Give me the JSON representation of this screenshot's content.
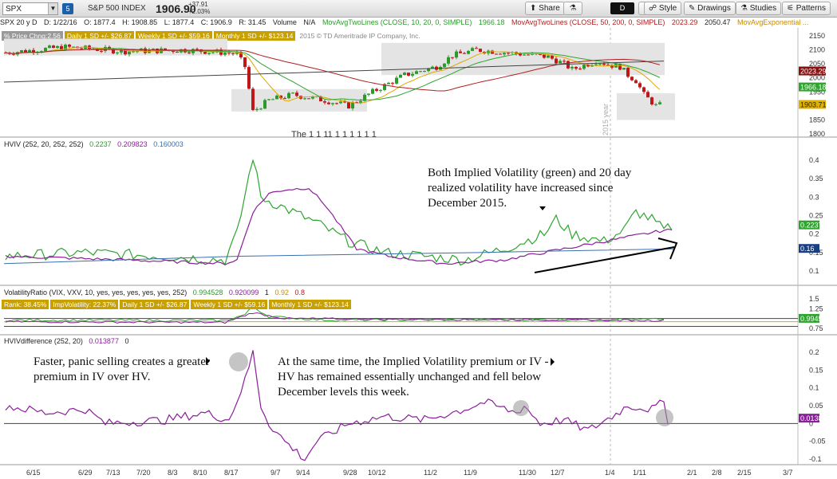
{
  "toolbar": {
    "symbol": "SPX",
    "badge": "5",
    "name": "S&P 500 INDEX",
    "price": "1906.90",
    "change_abs": "+37.91",
    "change_pct": "+2.03%",
    "share": "Share",
    "flask": "",
    "d_label": "D",
    "style": "Style",
    "drawings": "Drawings",
    "studies": "Studies",
    "patterns": "Patterns"
  },
  "info": {
    "period": "SPX 20 y D",
    "date": "D: 1/22/16",
    "open": "O: 1877.4",
    "high": "H: 1908.85",
    "low": "L: 1877.4",
    "close": "C: 1906.9",
    "range": "R: 31.45",
    "volume": "Volume",
    "na": "N/A",
    "ma1": "MovAvgTwoLines (CLOSE, 10, 20, 0, SIMPLE)",
    "ma1_val": "1966.18",
    "ma2": "MovAvgTwoLines (CLOSE, 50, 200, 0, SIMPLE)",
    "ma2_val": "2023.29",
    "ma2_val2": "2050.47",
    "ma3": "MovAvgExponential ..."
  },
  "tags": {
    "pct": "% Price Chng:2.56",
    "daily": "Daily 1 SD +/- $26.87",
    "weekly": "Weekly 1 SD +/- $59.16",
    "monthly": "Monthly 1 SD +/- $123.14",
    "copyright": "2015 © TD Ameritrade IP Company, Inc."
  },
  "hviv": {
    "label": "HVIV (252, 20, 252, 252)",
    "v1": "0.2237",
    "v2": "0.209823",
    "v3": "0.160003"
  },
  "vr": {
    "label": "VolatilityRatio (VIX, VXV, 10, yes, yes, yes, yes, yes, 252)",
    "v1": "0.994528",
    "v2": "0.920099",
    "v3": "1",
    "v4": "0.92",
    "v5": "0.8"
  },
  "vrtags": {
    "rank": "Rank: 38.45%",
    "iv": "ImpVolatility: 22.37%",
    "daily": "Daily 1 SD +/- $26.87",
    "weekly": "Weekly 1 SD +/- $59.16",
    "monthly": "Monthly 1 SD +/- $123.14"
  },
  "hvdiff": {
    "label": "HVIVdifference (252, 20)",
    "v1": "0.013877",
    "v2": "0"
  },
  "annotations": {
    "a1": "Both Implied Volatility (green) and 20 day realized volatility have increased since December 2015.",
    "a2": "Faster, panic selling creates a greater premium in IV over HV.",
    "a3": "At the same time, the Implied Volatility premium or IV - HV has remained essentially unchanged and fell below December levels this week.",
    "year_label": "2015 year",
    "mid_note": "The 1 1 11 1 1 1 1 1 1"
  },
  "price_axis": [
    "2150",
    "2100",
    "2050",
    "2000",
    "1950",
    "1900",
    "1850",
    "1800"
  ],
  "price_tags": {
    "ma200": "2023.29",
    "ma20": "1966.18",
    "last": "1903.71"
  },
  "hviv_axis": [
    "0.4",
    "0.35",
    "0.3",
    "0.25",
    "0.2",
    "0.15",
    "0.1"
  ],
  "hviv_tags": {
    "iv": "0.2237",
    "base": "0.16"
  },
  "vr_axis": [
    "1.5",
    "1.25",
    "1",
    "0.75"
  ],
  "vr_tags": {
    "v": "0.99453"
  },
  "diff_axis": [
    "0.2",
    "0.15",
    "0.1",
    "0.05",
    "0",
    "-0.05",
    "-0.1"
  ],
  "diff_tags": {
    "v": "0.01388"
  },
  "x_axis": [
    "6/15",
    "6/29",
    "7/13",
    "7/20",
    "8/3",
    "8/10",
    "8/17",
    "9/7",
    "9/14",
    "9/28",
    "10/12",
    "11/2",
    "11/9",
    "11/30",
    "12/7",
    "1/4",
    "1/11",
    "2/1",
    "2/8",
    "2/15",
    "3/7"
  ],
  "colors": {
    "iv": "#2fa52f",
    "hv": "#8a1f9a",
    "base": "#3a6fb0",
    "ma200": "#b02020",
    "ma20": "#2fa52f",
    "ma10": "#e0a800",
    "up": "#2a9a2a",
    "down": "#c01818"
  }
}
